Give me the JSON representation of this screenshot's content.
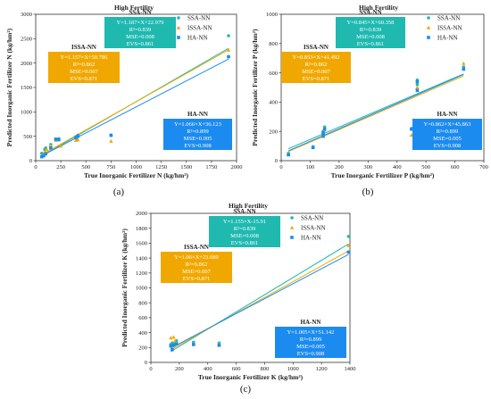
{
  "colors": {
    "ssa": "#1fb9b0",
    "issa": "#f0a800",
    "ha": "#1c8bf0",
    "axis": "#333333"
  },
  "chart_data": [
    {
      "type": "scatter",
      "panel": "(a)",
      "title": "High Fertility",
      "xlabel": "True Inorganic Fertilizer N (kg/hm²)",
      "ylabel": "Predicted Inorganic Fertilizer N (kg/hm²)",
      "xlim": [
        0,
        2000
      ],
      "ylim": [
        0,
        3000
      ],
      "xticks": [
        0,
        250,
        500,
        750,
        1000,
        1250,
        1500,
        1750,
        2000
      ],
      "yticks": [
        0,
        500,
        1000,
        1500,
        2000,
        2500,
        3000
      ],
      "legend": [
        "SSA-NN",
        "ISSA-NN",
        "HA-NN"
      ],
      "series": [
        {
          "name": "SSA-NN",
          "color": "#1fb9b0",
          "line": [
            1.187,
            22.979
          ],
          "points": [
            [
              60,
              150
            ],
            [
              90,
              230
            ],
            [
              100,
              260
            ],
            [
              150,
              330
            ],
            [
              200,
              440
            ],
            [
              230,
              450
            ],
            [
              400,
              490
            ],
            [
              420,
              520
            ],
            [
              750,
              520
            ],
            [
              1920,
              2560
            ]
          ]
        },
        {
          "name": "ISSA-NN",
          "color": "#f0a800",
          "line": [
            1.157,
            50.786
          ],
          "points": [
            [
              60,
              100
            ],
            [
              90,
              190
            ],
            [
              110,
              230
            ],
            [
              150,
              310
            ],
            [
              200,
              420
            ],
            [
              250,
              300
            ],
            [
              400,
              420
            ],
            [
              420,
              430
            ],
            [
              750,
              400
            ],
            [
              1920,
              2270
            ]
          ]
        },
        {
          "name": "HA-NN",
          "color": "#1c8bf0",
          "line": [
            1.066,
            36.123
          ],
          "points": [
            [
              60,
              80
            ],
            [
              80,
              100
            ],
            [
              100,
              140
            ],
            [
              150,
              260
            ],
            [
              200,
              440
            ],
            [
              230,
              430
            ],
            [
              400,
              470
            ],
            [
              420,
              500
            ],
            [
              750,
              520
            ],
            [
              1920,
              2130
            ]
          ]
        }
      ],
      "boxes": [
        {
          "title": "SSA-NN",
          "color": "#1fb9b0",
          "lines": [
            "Y=1.187×X+22.979",
            "R²=0.839",
            "MSE=0.008",
            "EVS=0.861"
          ]
        },
        {
          "title": "ISSA-NN",
          "color": "#f0a800",
          "lines": [
            "Y=1.157×X+50.786",
            "R²=0.862",
            "MSE=0.007",
            "EVS=0.871"
          ]
        },
        {
          "title": "HA-NN",
          "color": "#1c8bf0",
          "lines": [
            "Y=1.066×X+36.123",
            "R²=0.899",
            "MSE=0.005",
            "EVS=0.908"
          ]
        }
      ]
    },
    {
      "type": "scatter",
      "panel": "(b)",
      "title": "High Fertility",
      "xlabel": "True Inorganic Fertilizer P (kg/hm²)",
      "ylabel": "Predicted Inorganic Fertilizer P (kg/hm²)",
      "xlim": [
        0,
        700
      ],
      "ylim": [
        0,
        1000
      ],
      "xticks": [
        0,
        100,
        200,
        300,
        400,
        500,
        600,
        700
      ],
      "yticks": [
        0,
        200,
        400,
        600,
        800,
        1000
      ],
      "legend": [
        "SSA-NN",
        "ISSA-NN",
        "HA-NN"
      ],
      "series": [
        {
          "name": "SSA-NN",
          "color": "#1fb9b0",
          "line": [
            0.845,
            60.358
          ],
          "points": [
            [
              25,
              50
            ],
            [
              110,
              95
            ],
            [
              145,
              180
            ],
            [
              145,
              200
            ],
            [
              150,
              230
            ],
            [
              450,
              220
            ],
            [
              470,
              520
            ],
            [
              470,
              550
            ],
            [
              630,
              640
            ]
          ]
        },
        {
          "name": "ISSA-NN",
          "color": "#f0a800",
          "line": [
            0.853,
            41.492
          ],
          "points": [
            [
              25,
              45
            ],
            [
              110,
              90
            ],
            [
              145,
              165
            ],
            [
              150,
              210
            ],
            [
              450,
              175
            ],
            [
              470,
              500
            ],
            [
              630,
              665
            ]
          ]
        },
        {
          "name": "HA-NN",
          "color": "#1c8bf0",
          "line": [
            0.862,
            45.863
          ],
          "points": [
            [
              25,
              40
            ],
            [
              110,
              90
            ],
            [
              145,
              170
            ],
            [
              145,
              190
            ],
            [
              150,
              215
            ],
            [
              450,
              215
            ],
            [
              470,
              480
            ],
            [
              470,
              540
            ],
            [
              630,
              625
            ]
          ]
        }
      ],
      "boxes": [
        {
          "title": "SSA-NN",
          "color": "#1fb9b0",
          "lines": [
            "Y=0.845×X+60.358",
            "R²=0.839",
            "MSE=0.008",
            "EVS=0.861"
          ]
        },
        {
          "title": "ISSA-NN",
          "color": "#f0a800",
          "lines": [
            "Y=0.853×X+41.492",
            "R²=0.862",
            "MSE=0.007",
            "EVS=0.871"
          ]
        },
        {
          "title": "HA-NN",
          "color": "#1c8bf0",
          "lines": [
            "Y=0.862×X+45.863",
            "R²=0.899",
            "MSE=0.005",
            "EVS=0.908"
          ]
        }
      ]
    },
    {
      "type": "scatter",
      "panel": "(c)",
      "title": "High Fertility",
      "xlabel": "True Inorganic Fertilizer K (kg/hm²)",
      "ylabel": "Predicted Inorganic Fertilizer K (kg/hm²)",
      "xlim": [
        0,
        1400
      ],
      "ylim": [
        0,
        2000
      ],
      "xticks": [
        0,
        200,
        400,
        600,
        800,
        1000,
        1200,
        1400
      ],
      "yticks": [
        0,
        200,
        400,
        600,
        800,
        1000,
        1200,
        1400,
        1600,
        1800,
        2000
      ],
      "legend": [
        "SSA-NN",
        "ISSA-NN",
        "HA-NN"
      ],
      "series": [
        {
          "name": "SSA-NN",
          "color": "#1fb9b0",
          "line": [
            1.155,
            -15.91
          ],
          "points": [
            [
              140,
              240
            ],
            [
              150,
              260
            ],
            [
              160,
              250
            ],
            [
              180,
              290
            ],
            [
              300,
              270
            ],
            [
              480,
              260
            ],
            [
              1390,
              1690
            ]
          ]
        },
        {
          "name": "ISSA-NN",
          "color": "#f0a800",
          "line": [
            1.06,
            23.089
          ],
          "points": [
            [
              140,
              330
            ],
            [
              160,
              340
            ],
            [
              150,
              200
            ],
            [
              170,
              290
            ],
            [
              300,
              250
            ],
            [
              480,
              240
            ],
            [
              1390,
              1570
            ]
          ]
        },
        {
          "name": "HA-NN",
          "color": "#1c8bf0",
          "line": [
            1.005,
            51.142
          ],
          "points": [
            [
              140,
              220
            ],
            [
              150,
              170
            ],
            [
              160,
              230
            ],
            [
              180,
              250
            ],
            [
              300,
              240
            ],
            [
              480,
              230
            ],
            [
              1390,
              1480
            ]
          ]
        }
      ],
      "boxes": [
        {
          "title": "SSA-NN",
          "color": "#1fb9b0",
          "lines": [
            "Y=1.155×X-15.91",
            "R²=0.839",
            "MSE=0.008",
            "EVS=0.861"
          ]
        },
        {
          "title": "ISSA-NN",
          "color": "#f0a800",
          "lines": [
            "Y=1.06×X+23.089",
            "R²=0.862",
            "MSE=0.007",
            "EVS=0.871"
          ]
        },
        {
          "title": "HA-NN",
          "color": "#1c8bf0",
          "lines": [
            "Y=1.005×X+51.142",
            "R²=0.899",
            "MSE=0.005",
            "EVS=0.908"
          ]
        }
      ]
    }
  ]
}
